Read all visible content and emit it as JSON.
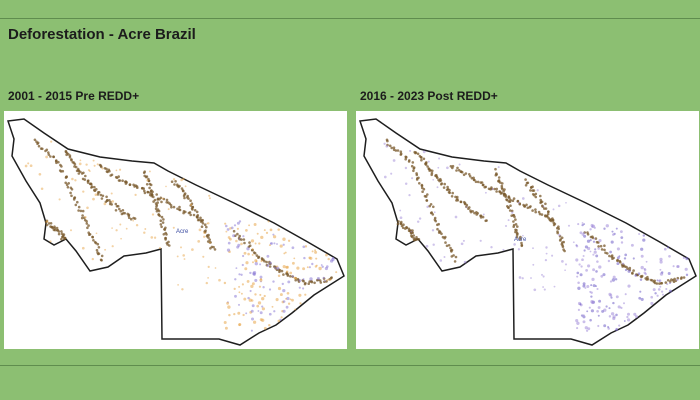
{
  "page": {
    "title": "Deforestation - Acre Brazil"
  },
  "panels": [
    {
      "label": "2001 - 2015 Pre REDD+",
      "city_label": "Acre",
      "colors": {
        "primary": "#e8a54a",
        "secondary": "#7a5a2c",
        "urban": "#8c7bd6"
      }
    },
    {
      "label": "2016 - 2023 Post REDD+",
      "city_label": "Acre",
      "colors": {
        "primary": "#a08ad8",
        "secondary": "#7a5a2c",
        "urban": "#6f5fc6"
      }
    }
  ],
  "colors": {
    "background": "#8cbf72",
    "rule": "#5f8d4e",
    "map_fill": "#ffffff",
    "outline": "#1e1e1e"
  }
}
